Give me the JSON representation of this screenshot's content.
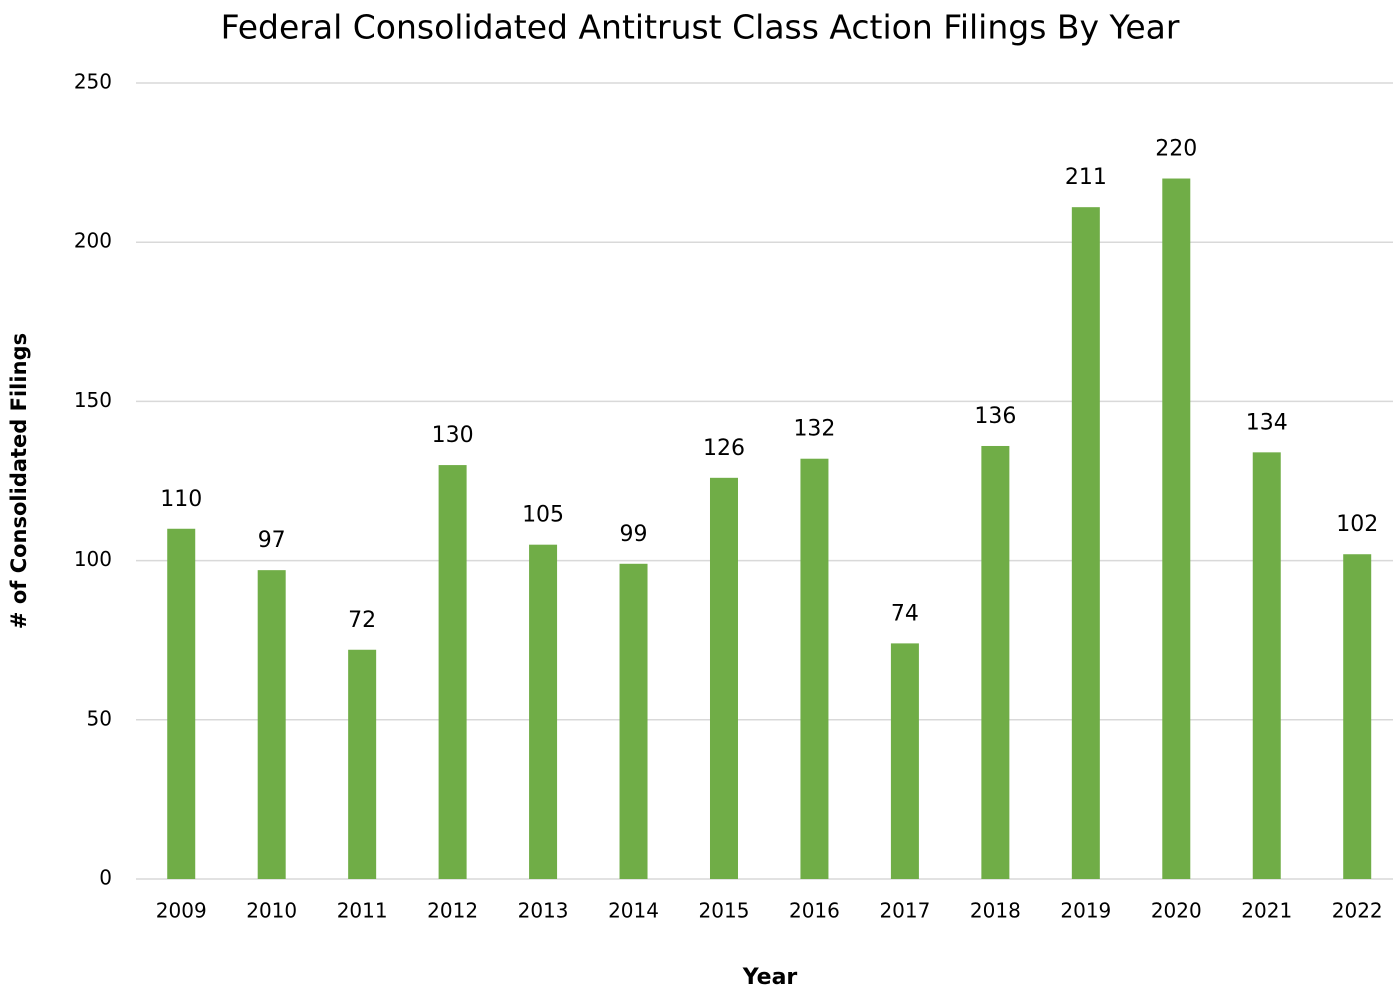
{
  "chart_data": {
    "type": "bar",
    "title": "Federal Consolidated Antitrust Class Action Filings By Year",
    "x_label": "Year",
    "y_label": "# of Consolidated Filings",
    "categories": [
      "2009",
      "2010",
      "2011",
      "2012",
      "2013",
      "2014",
      "2015",
      "2016",
      "2017",
      "2018",
      "2019",
      "2020",
      "2021",
      "2022"
    ],
    "values": [
      110,
      97,
      72,
      130,
      105,
      99,
      126,
      132,
      74,
      136,
      211,
      220,
      134,
      102
    ],
    "color": "#70ad47",
    "ylim": [
      0,
      250
    ],
    "yticks": [
      0,
      50,
      100,
      150,
      200,
      250
    ],
    "grid": true
  }
}
